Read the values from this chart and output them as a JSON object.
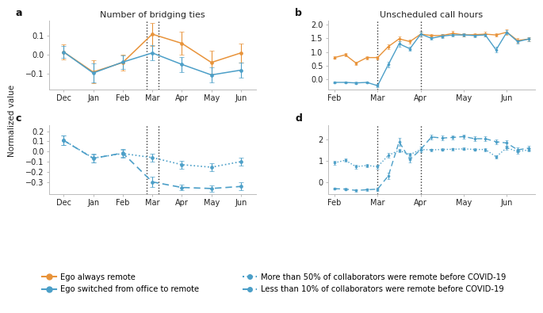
{
  "panel_a": {
    "title": "Number of bridging ties",
    "label": "a",
    "xlabels": [
      "Dec",
      "Jan",
      "Feb",
      "Mar",
      "Apr",
      "May",
      "Jun"
    ],
    "x": [
      0,
      1,
      2,
      3,
      4,
      5,
      6
    ],
    "vlines": [
      2.8,
      3.2
    ],
    "orange_y": [
      0.015,
      -0.09,
      -0.04,
      0.108,
      0.06,
      -0.04,
      0.01
    ],
    "orange_err": [
      0.04,
      0.06,
      0.04,
      0.06,
      0.06,
      0.06,
      0.05
    ],
    "blue_y": [
      0.015,
      -0.095,
      -0.038,
      0.01,
      -0.05,
      -0.105,
      -0.08
    ],
    "blue_err": [
      0.03,
      0.05,
      0.035,
      0.04,
      0.04,
      0.04,
      0.04
    ],
    "ylim": [
      -0.18,
      0.18
    ],
    "yticks": [
      -0.1,
      0.0,
      0.1
    ]
  },
  "panel_b": {
    "title": "Unscheduled call hours",
    "label": "b",
    "x_orange": [
      0,
      0.5,
      1,
      1.5,
      2,
      2.5,
      3,
      3.5,
      4,
      4.5,
      5,
      5.5,
      6,
      6.5,
      7,
      7.5,
      8,
      8.5,
      9
    ],
    "x_blue": [
      0,
      0.5,
      1,
      1.5,
      2,
      2.5,
      3,
      3.5,
      4,
      4.5,
      5,
      5.5,
      6,
      6.5,
      7,
      7.5,
      8,
      8.5,
      9
    ],
    "orange_y": [
      0.8,
      0.9,
      0.6,
      0.8,
      0.8,
      1.2,
      1.48,
      1.38,
      1.65,
      1.6,
      1.6,
      1.68,
      1.62,
      1.63,
      1.65,
      1.62,
      1.72,
      1.42,
      1.47
    ],
    "orange_err": [
      0.05,
      0.06,
      0.06,
      0.06,
      0.06,
      0.08,
      0.1,
      0.08,
      0.08,
      0.06,
      0.06,
      0.08,
      0.06,
      0.06,
      0.08,
      0.06,
      0.1,
      0.08,
      0.08
    ],
    "blue_y": [
      -0.1,
      -0.1,
      -0.12,
      -0.1,
      -0.22,
      0.55,
      1.3,
      1.12,
      1.65,
      1.5,
      1.58,
      1.62,
      1.62,
      1.6,
      1.62,
      1.08,
      1.72,
      1.38,
      1.47
    ],
    "blue_err": [
      0.03,
      0.03,
      0.04,
      0.04,
      0.05,
      0.1,
      0.1,
      0.08,
      0.08,
      0.06,
      0.06,
      0.06,
      0.06,
      0.06,
      0.06,
      0.1,
      0.08,
      0.08,
      0.08
    ],
    "vlines_x": [
      2.0,
      4.0
    ],
    "xlim": [
      -0.3,
      9.3
    ],
    "ylim": [
      -0.35,
      2.15
    ],
    "yticks": [
      0.0,
      0.5,
      1.0,
      1.5,
      2.0
    ],
    "xtick_pos": [
      0,
      2,
      4,
      6,
      8
    ],
    "xtick_labels": [
      "Feb",
      "Mar",
      "Apr",
      "May",
      "Jun"
    ]
  },
  "panel_c": {
    "label": "c",
    "xlabels": [
      "Dec",
      "Jan",
      "Feb",
      "Mar",
      "Apr",
      "May",
      "Jun"
    ],
    "x": [
      0,
      1,
      2,
      3,
      4,
      5,
      6
    ],
    "vlines": [
      2.8,
      3.2
    ],
    "dotted_y": [
      0.11,
      -0.065,
      -0.02,
      -0.06,
      -0.13,
      -0.155,
      -0.1
    ],
    "dotted_err": [
      0.05,
      0.04,
      0.04,
      0.04,
      0.04,
      0.04,
      0.04
    ],
    "dashed_y": [
      0.11,
      -0.068,
      -0.015,
      -0.3,
      -0.355,
      -0.365,
      -0.345
    ],
    "dashed_err": [
      0.05,
      0.04,
      0.04,
      0.05,
      0.03,
      0.03,
      0.04
    ],
    "ylim": [
      -0.42,
      0.26
    ],
    "yticks": [
      -0.3,
      -0.2,
      -0.1,
      0.0,
      0.1,
      0.2
    ]
  },
  "panel_d": {
    "label": "d",
    "x_dotted": [
      0,
      0.5,
      1,
      1.5,
      2,
      2.5,
      3,
      3.5,
      4,
      4.5,
      5,
      5.5,
      6,
      6.5,
      7,
      7.5,
      8,
      8.5,
      9
    ],
    "x_dashed": [
      0,
      0.5,
      1,
      1.5,
      2,
      2.5,
      3,
      3.5,
      4,
      4.5,
      5,
      5.5,
      6,
      6.5,
      7,
      7.5,
      8,
      8.5,
      9
    ],
    "vlines_x": [
      2.0,
      4.0
    ],
    "dotted_y": [
      0.9,
      1.02,
      0.72,
      0.78,
      0.72,
      1.25,
      1.48,
      1.28,
      1.52,
      1.5,
      1.52,
      1.53,
      1.55,
      1.52,
      1.52,
      1.18,
      1.6,
      1.42,
      1.5
    ],
    "dotted_err": [
      0.08,
      0.08,
      0.08,
      0.08,
      0.08,
      0.1,
      0.08,
      0.08,
      0.06,
      0.06,
      0.06,
      0.06,
      0.06,
      0.06,
      0.07,
      0.08,
      0.09,
      0.08,
      0.08
    ],
    "dashed_y": [
      -0.3,
      -0.32,
      -0.38,
      -0.35,
      -0.32,
      0.3,
      1.88,
      1.05,
      1.52,
      2.1,
      2.05,
      2.08,
      2.12,
      2.02,
      2.02,
      1.88,
      1.82,
      1.5,
      1.58
    ],
    "dashed_err": [
      0.05,
      0.05,
      0.06,
      0.06,
      0.07,
      0.14,
      0.18,
      0.14,
      0.12,
      0.1,
      0.1,
      0.1,
      0.1,
      0.1,
      0.1,
      0.12,
      0.12,
      0.12,
      0.12
    ],
    "xlim": [
      -0.3,
      9.3
    ],
    "ylim": [
      -0.55,
      2.65
    ],
    "yticks": [
      0.0,
      1.0,
      2.0
    ],
    "xtick_pos": [
      0,
      2,
      4,
      6,
      8
    ],
    "xtick_labels": [
      "Feb",
      "Mar",
      "Apr",
      "May",
      "Jun"
    ]
  },
  "colors": {
    "orange": "#E8933A",
    "blue": "#4C9FC8",
    "vline": "#333333"
  },
  "legend": {
    "orange_label": "Ego always remote",
    "blue_label": "Ego switched from office to remote",
    "dotted_label": "More than 50% of collaborators were remote before COVID-19",
    "dashed_label": "Less than 10% of collaborators were remote before COVID-19"
  }
}
